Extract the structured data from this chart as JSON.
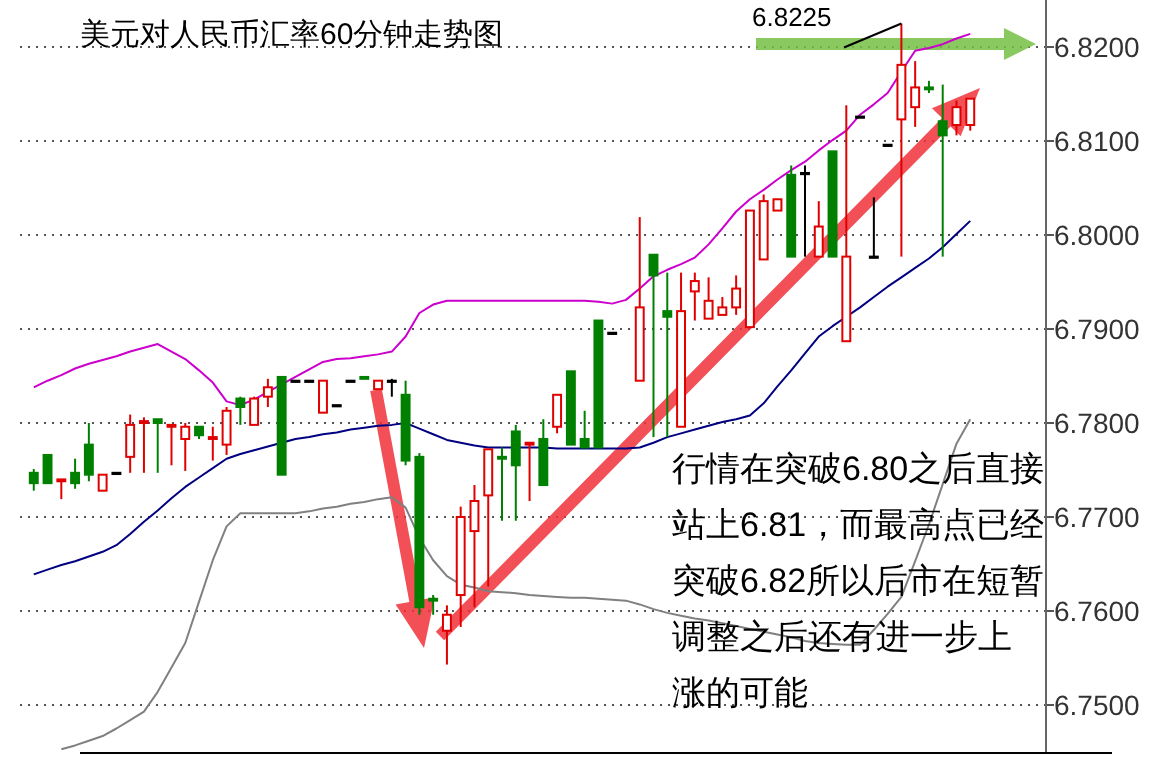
{
  "chart_data": {
    "type": "candlestick",
    "title": "美元对人民币汇率60分钟走势图",
    "annotations": [
      "6.8225",
      "行情在突破6.80之后直接站上6.81，而最高点已经突破6.82所以后市在短暂调整之后还有进一步上涨的可能"
    ],
    "categories": [
      null,
      null,
      null,
      null,
      null,
      null,
      null,
      null,
      null,
      null,
      null,
      null,
      null,
      null,
      null,
      null,
      null,
      null,
      null,
      null,
      null,
      null,
      null,
      null,
      null,
      null,
      null,
      null,
      null,
      null,
      null,
      null,
      null,
      null,
      null,
      null,
      null,
      null,
      null,
      null,
      null,
      null,
      null,
      null,
      null,
      null,
      null,
      null,
      null,
      null,
      null,
      null,
      null,
      null,
      null,
      null,
      null,
      null,
      null,
      null,
      null,
      null,
      null,
      null,
      null,
      null,
      null,
      null,
      null
    ],
    "ohlc": [
      [
        6.7747,
        6.7751,
        6.7728,
        6.7736
      ],
      [
        6.7766,
        6.7766,
        6.7736,
        6.7736
      ],
      [
        6.7738,
        6.774,
        6.7719,
        6.774
      ],
      [
        6.7747,
        6.7762,
        6.773,
        6.7736
      ],
      [
        6.7777,
        6.78,
        6.7738,
        6.7745
      ],
      [
        6.7728,
        6.7745,
        6.7728,
        6.7745
      ],
      [
        6.7747,
        6.7747,
        6.7747,
        6.7747
      ],
      [
        6.7764,
        6.7809,
        6.7747,
        6.7798
      ],
      [
        6.78,
        6.7806,
        6.7747,
        6.7802
      ],
      [
        6.7804,
        6.7804,
        6.7747,
        6.78
      ],
      [
        6.7796,
        6.7798,
        6.7755,
        6.7798
      ],
      [
        6.7783,
        6.78,
        6.7749,
        6.7796
      ],
      [
        6.7796,
        6.7796,
        6.7783,
        6.7787
      ],
      [
        6.7783,
        6.7796,
        6.776,
        6.7785
      ],
      [
        6.7777,
        6.7817,
        6.7766,
        6.7813
      ],
      [
        6.7826,
        6.7828,
        6.7798,
        6.7817
      ],
      [
        6.7798,
        6.7828,
        6.7798,
        6.7826
      ],
      [
        6.7828,
        6.7847,
        6.7817,
        6.7838
      ],
      [
        6.7849,
        6.7849,
        6.7745,
        6.7745
      ],
      [
        6.7845,
        6.7845,
        6.7845,
        6.7845
      ],
      [
        6.7845,
        6.7845,
        6.7845,
        6.7845
      ],
      [
        6.7811,
        6.7845,
        6.7811,
        6.7845
      ],
      [
        6.7819,
        6.7819,
        6.7819,
        6.7819
      ],
      [
        6.7845,
        6.7845,
        6.7845,
        6.7845
      ],
      [
        6.7849,
        6.7849,
        6.7847,
        6.7847
      ],
      [
        6.7836,
        6.7845,
        6.7836,
        6.7845
      ],
      [
        6.7845,
        6.7847,
        6.7828,
        6.7845
      ],
      [
        6.783,
        6.7845,
        6.7755,
        6.776
      ],
      [
        6.7764,
        6.7768,
        6.7596,
        6.7604
      ],
      [
        6.7613,
        6.7617,
        6.7596,
        6.7611
      ],
      [
        6.7579,
        6.7606,
        6.7543,
        6.7596
      ],
      [
        6.7617,
        6.7711,
        6.7583,
        6.77
      ],
      [
        6.7685,
        6.7734,
        6.7604,
        6.7717
      ],
      [
        6.7723,
        6.7772,
        6.7626,
        6.7772
      ],
      [
        6.7764,
        6.7774,
        6.7696,
        6.7762
      ],
      [
        6.7791,
        6.7798,
        6.7696,
        6.7755
      ],
      [
        6.7777,
        6.7779,
        6.7717,
        6.7779
      ],
      [
        6.7783,
        6.7804,
        6.7734,
        6.7734
      ],
      [
        6.7796,
        6.783,
        6.7789,
        6.783
      ],
      [
        6.7855,
        6.7855,
        6.7777,
        6.7777
      ],
      [
        6.7783,
        6.7813,
        6.7774,
        6.7774
      ],
      [
        6.7909,
        6.7909,
        6.7774,
        6.7774
      ],
      [
        6.7896,
        6.7896,
        6.7896,
        6.7896
      ],
      null,
      [
        6.7845,
        6.8019,
        6.7845,
        6.7923
      ],
      [
        6.7979,
        6.7979,
        6.7785,
        6.7957
      ],
      [
        6.7919,
        6.796,
        6.7785,
        6.7913
      ],
      [
        6.7796,
        6.796,
        6.7796,
        6.7919
      ],
      [
        6.794,
        6.796,
        6.7909,
        6.7951
      ],
      [
        6.7911,
        6.7955,
        6.7911,
        6.793
      ],
      [
        6.7915,
        6.7934,
        6.7915,
        6.7923
      ],
      [
        6.7923,
        6.7957,
        6.7915,
        6.7943
      ],
      [
        6.7902,
        6.8026,
        6.7902,
        6.8026
      ],
      [
        6.7974,
        6.8043,
        6.7974,
        6.8036
      ],
      [
        6.8026,
        6.8038,
        6.8026,
        6.8038
      ],
      [
        6.8064,
        6.8074,
        6.7977,
        6.7977
      ],
      [
        6.8066,
        6.8074,
        6.7977,
        6.8066
      ],
      [
        6.7977,
        6.8036,
        6.7977,
        6.8009
      ],
      [
        6.8089,
        6.8089,
        6.7977,
        6.7977
      ],
      [
        6.7887,
        6.8138,
        6.7887,
        6.7977
      ],
      [
        6.8126,
        6.8126,
        6.8126,
        6.8126
      ],
      [
        6.7977,
        6.804,
        6.7977,
        6.7977
      ],
      [
        6.8096,
        6.8096,
        6.8096,
        6.8096
      ],
      [
        6.8123,
        6.8225,
        6.7977,
        6.8181
      ],
      [
        6.8136,
        6.8185,
        6.8115,
        6.8157
      ],
      [
        6.8157,
        6.8164,
        6.8151,
        6.8155
      ],
      [
        6.8121,
        6.816,
        6.7977,
        6.8106
      ],
      [
        6.8117,
        6.8143,
        6.8106,
        6.8136
      ],
      [
        6.8117,
        6.8145,
        6.8111,
        6.8145
      ]
    ],
    "series": [
      {
        "type": "line",
        "color": "#cc00cc",
        "values": [
          6.7838,
          6.7845,
          6.7851,
          6.7858,
          6.7863,
          6.7867,
          6.7871,
          6.7876,
          6.788,
          6.7884,
          6.7876,
          6.7868,
          6.7856,
          6.7843,
          6.7823,
          6.7819,
          6.7825,
          6.7833,
          6.7841,
          6.7849,
          6.7857,
          6.7865,
          6.7868,
          6.7869,
          6.7871,
          6.7873,
          6.7876,
          6.7892,
          6.7917,
          6.7926,
          6.793,
          6.793,
          6.793,
          6.793,
          6.793,
          6.793,
          6.793,
          6.793,
          6.793,
          6.793,
          6.793,
          6.7929,
          6.7927,
          6.7931,
          6.7943,
          6.7956,
          6.7963,
          6.7969,
          6.7976,
          6.799,
          6.8007,
          6.8025,
          6.8038,
          6.8048,
          6.8059,
          6.8069,
          6.8078,
          6.809,
          6.8101,
          6.8111,
          6.8128,
          6.8139,
          6.8151,
          6.8174,
          6.8196,
          6.8199,
          6.8203,
          6.8209,
          6.8214
        ]
      },
      {
        "type": "line",
        "color": "#000080",
        "values": [
          6.7639,
          6.7644,
          6.7649,
          6.7653,
          6.7658,
          6.7663,
          6.767,
          6.7682,
          6.7695,
          6.7707,
          6.772,
          6.7732,
          6.7742,
          6.7752,
          6.7762,
          6.7767,
          6.7771,
          6.7775,
          6.7779,
          6.7783,
          6.7785,
          6.7788,
          6.779,
          6.7793,
          6.7795,
          6.7797,
          6.7798,
          6.78,
          6.7794,
          6.7788,
          6.7782,
          6.7779,
          6.7776,
          6.7774,
          6.7774,
          6.7774,
          6.7774,
          6.7774,
          6.7773,
          6.7773,
          6.7773,
          6.7773,
          6.7773,
          6.7773,
          6.7774,
          6.7779,
          6.7785,
          6.7789,
          6.7793,
          6.7797,
          6.7801,
          6.7804,
          6.7808,
          6.7821,
          6.7839,
          6.7856,
          6.7874,
          6.7892,
          6.7903,
          6.7913,
          6.7923,
          6.7934,
          6.7945,
          6.7955,
          6.7965,
          6.7975,
          6.7987,
          6.8001,
          6.8015
        ]
      },
      {
        "type": "line",
        "color": "#808080",
        "values": [
          null,
          null,
          6.7453,
          6.7457,
          6.7462,
          6.7467,
          6.7475,
          6.7484,
          6.7493,
          6.7514,
          6.754,
          6.7566,
          6.761,
          6.7654,
          6.769,
          6.7704,
          6.7704,
          6.7704,
          6.7704,
          6.7704,
          6.7706,
          6.7709,
          6.7711,
          6.7714,
          6.7716,
          6.7719,
          6.7721,
          6.771,
          6.7678,
          6.7654,
          6.7637,
          6.7628,
          6.7625,
          6.7621,
          6.762,
          6.7619,
          6.7617,
          6.7616,
          6.7615,
          6.7614,
          6.7614,
          6.7613,
          6.7612,
          6.7611,
          6.7607,
          6.7602,
          6.7598,
          6.7595,
          6.7592,
          6.759,
          6.7587,
          6.7584,
          6.7581,
          6.7578,
          6.7575,
          6.7572,
          6.7568,
          6.7566,
          6.7565,
          6.7564,
          6.7564,
          6.758,
          6.7597,
          6.7615,
          6.7653,
          6.7692,
          6.7735,
          6.7778,
          6.7804
        ]
      }
    ],
    "ylim": [
      6.745,
      6.825
    ],
    "yticks": [
      {
        "value": 6.75,
        "label": "6.7500"
      },
      {
        "value": 6.76,
        "label": "6.7600"
      },
      {
        "value": 6.77,
        "label": "6.7700"
      },
      {
        "value": 6.78,
        "label": "6.7800"
      },
      {
        "value": 6.79,
        "label": "6.7900"
      },
      {
        "value": 6.8,
        "label": "6.8000"
      },
      {
        "value": 6.81,
        "label": "6.8100"
      },
      {
        "value": 6.82,
        "label": "6.8200"
      }
    ],
    "grid": "y",
    "tick_labels": "y"
  }
}
